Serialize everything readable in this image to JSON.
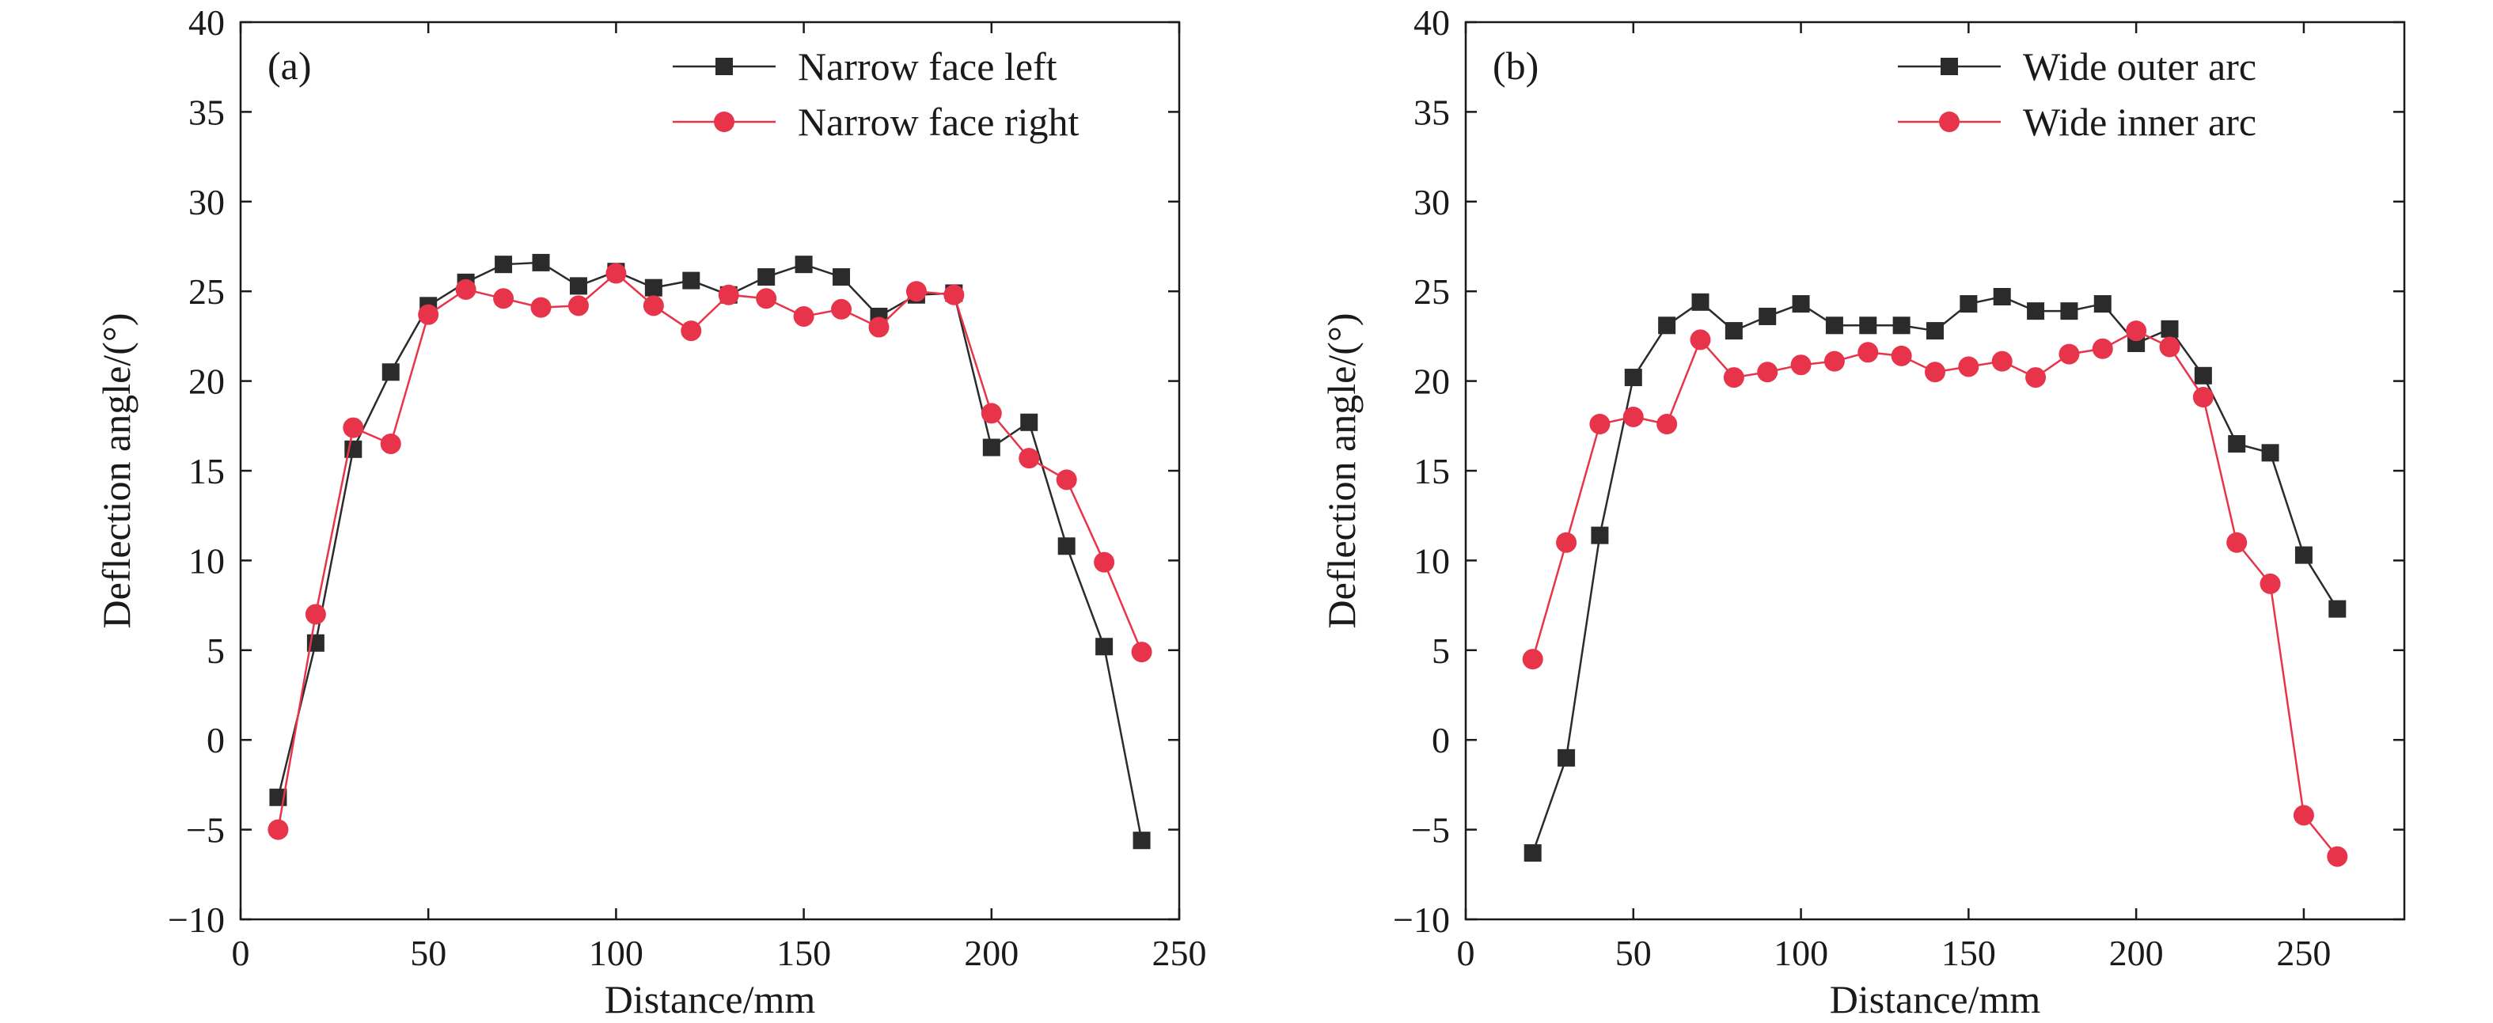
{
  "colors": {
    "series_black": "#2b2b2b",
    "series_red": "#e8344a"
  },
  "chart_data": [
    {
      "type": "line",
      "panel_label": "(a)",
      "xlabel": "Distance/mm",
      "ylabel": "Deflection angle/(°)",
      "xlim": [
        0,
        250
      ],
      "ylim": [
        -10,
        40
      ],
      "xticks": [
        0,
        50,
        100,
        150,
        200,
        250
      ],
      "yticks": [
        -10,
        -5,
        0,
        5,
        10,
        15,
        20,
        25,
        30,
        35,
        40
      ],
      "xtick_labels": [
        "0",
        "50",
        "100",
        "150",
        "200",
        "250"
      ],
      "ytick_labels": [
        "−10",
        "−5",
        "0",
        "5",
        "10",
        "15",
        "20",
        "25",
        "30",
        "35",
        "40"
      ],
      "legend_position": "top-right",
      "series": [
        {
          "name": "Narrow face left",
          "marker": "square",
          "color": "#2b2b2b",
          "x": [
            10,
            20,
            30,
            40,
            50,
            60,
            70,
            80,
            90,
            100,
            110,
            120,
            130,
            140,
            150,
            160,
            170,
            180,
            190,
            200,
            210,
            220,
            230,
            240
          ],
          "y": [
            -3.2,
            5.4,
            16.2,
            20.5,
            24.2,
            25.5,
            26.5,
            26.6,
            25.3,
            26.1,
            25.2,
            25.6,
            24.8,
            25.8,
            26.5,
            25.8,
            23.6,
            24.8,
            24.9,
            16.3,
            17.7,
            10.8,
            5.2,
            -5.6
          ]
        },
        {
          "name": "Narrow face right",
          "marker": "circle",
          "color": "#e8344a",
          "x": [
            10,
            20,
            30,
            40,
            50,
            60,
            70,
            80,
            90,
            100,
            110,
            120,
            130,
            140,
            150,
            160,
            170,
            180,
            190,
            200,
            210,
            220,
            230,
            240
          ],
          "y": [
            -5.0,
            7.0,
            17.4,
            16.5,
            23.7,
            25.1,
            24.6,
            24.1,
            24.2,
            26.0,
            24.2,
            22.8,
            24.8,
            24.6,
            23.6,
            24.0,
            23.0,
            25.0,
            24.8,
            18.2,
            15.7,
            14.5,
            9.9,
            4.9
          ]
        }
      ]
    },
    {
      "type": "line",
      "panel_label": "(b)",
      "xlabel": "Distance/mm",
      "ylabel": "Deflection angle/(°)",
      "xlim": [
        0,
        280
      ],
      "ylim": [
        -10,
        40
      ],
      "xticks": [
        0,
        50,
        100,
        150,
        200,
        250
      ],
      "yticks": [
        -10,
        -5,
        0,
        5,
        10,
        15,
        20,
        25,
        30,
        35,
        40
      ],
      "xtick_labels": [
        "0",
        "50",
        "100",
        "150",
        "200",
        "250"
      ],
      "ytick_labels": [
        "−10",
        "−5",
        "0",
        "5",
        "10",
        "15",
        "20",
        "25",
        "30",
        "35",
        "40"
      ],
      "legend_position": "top-right",
      "series": [
        {
          "name": "Wide outer arc",
          "marker": "square",
          "color": "#2b2b2b",
          "x": [
            20,
            30,
            40,
            50,
            60,
            70,
            80,
            90,
            100,
            110,
            120,
            130,
            140,
            150,
            160,
            170,
            180,
            190,
            200,
            210,
            220,
            230,
            240,
            250,
            260
          ],
          "y": [
            -6.3,
            -1.0,
            11.4,
            20.2,
            23.1,
            24.4,
            22.8,
            23.6,
            24.3,
            23.1,
            23.1,
            23.1,
            22.8,
            24.3,
            24.7,
            23.9,
            23.9,
            24.3,
            22.1,
            22.9,
            20.3,
            16.5,
            16.0,
            10.3,
            7.3
          ]
        },
        {
          "name": "Wide inner arc",
          "marker": "circle",
          "color": "#e8344a",
          "x": [
            20,
            30,
            40,
            50,
            60,
            70,
            80,
            90,
            100,
            110,
            120,
            130,
            140,
            150,
            160,
            170,
            180,
            190,
            200,
            210,
            220,
            230,
            240,
            250,
            260
          ],
          "y": [
            4.5,
            11.0,
            17.6,
            18.0,
            17.6,
            22.3,
            20.2,
            20.5,
            20.9,
            21.1,
            21.6,
            21.4,
            20.5,
            20.8,
            21.1,
            20.2,
            21.5,
            21.8,
            22.8,
            21.9,
            19.1,
            11.0,
            8.7,
            -4.2,
            -6.5
          ]
        }
      ]
    }
  ]
}
